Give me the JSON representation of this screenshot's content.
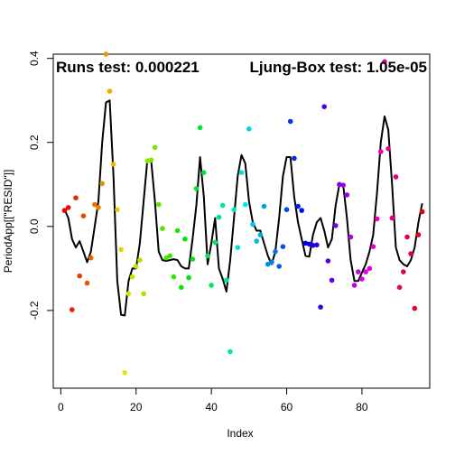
{
  "chart_data": {
    "type": "scatter",
    "title": "",
    "xlabel": "Index",
    "ylabel": "PeriodApp[[\"RESID\"]]",
    "xlim": [
      -2,
      98
    ],
    "ylim": [
      -0.385,
      0.41
    ],
    "x_ticks": [
      0,
      20,
      40,
      60,
      80
    ],
    "y_ticks": [
      -0.2,
      0.0,
      0.2,
      0.4
    ],
    "x_tick_labels": [
      "0",
      "20",
      "40",
      "60",
      "80"
    ],
    "y_tick_labels": [
      "-0.2",
      "0.0",
      "0.2",
      "0.4"
    ],
    "grid": false,
    "annotations": {
      "runs_test": "Runs test: 0.000221",
      "ljung_box": "Ljung-Box test: 1.05e-05"
    },
    "point_color": "rainbow hue by index (red → yellow → green → cyan → blue → magenta → red)",
    "line_color": "#000000",
    "points": {
      "x": [
        1,
        2,
        3,
        4,
        5,
        6,
        7,
        8,
        9,
        10,
        11,
        12,
        13,
        14,
        15,
        16,
        17,
        18,
        19,
        20,
        21,
        22,
        23,
        24,
        25,
        26,
        27,
        28,
        29,
        30,
        31,
        32,
        33,
        34,
        35,
        36,
        37,
        38,
        39,
        40,
        41,
        42,
        43,
        44,
        45,
        46,
        47,
        48,
        49,
        50,
        51,
        52,
        53,
        54,
        55,
        56,
        57,
        58,
        59,
        60,
        61,
        62,
        63,
        64,
        65,
        66,
        67,
        68,
        69,
        70,
        71,
        72,
        73,
        74,
        75,
        76,
        77,
        78,
        79,
        80,
        81,
        82,
        83,
        84,
        85,
        86,
        87,
        88,
        89,
        90,
        91,
        92,
        93,
        94,
        95,
        96
      ],
      "y": [
        0.038,
        0.045,
        -0.198,
        0.068,
        -0.118,
        0.025,
        -0.135,
        -0.075,
        0.052,
        0.045,
        0.102,
        0.41,
        0.322,
        0.148,
        0.04,
        -0.055,
        -0.348,
        -0.16,
        -0.12,
        -0.095,
        -0.08,
        -0.16,
        0.156,
        0.158,
        0.188,
        0.052,
        -0.005,
        -0.075,
        -0.07,
        -0.12,
        -0.01,
        -0.145,
        -0.03,
        -0.122,
        -0.078,
        0.09,
        0.235,
        0.128,
        -0.07,
        -0.14,
        -0.038,
        0.022,
        0.05,
        -0.128,
        -0.298,
        0.04,
        -0.05,
        0.128,
        0.052,
        0.232,
        0.005,
        -0.035,
        -0.02,
        0.048,
        -0.09,
        -0.085,
        -0.06,
        -0.095,
        -0.048,
        0.04,
        0.25,
        0.162,
        0.048,
        0.038,
        -0.04,
        -0.042,
        -0.045,
        -0.044,
        -0.192,
        0.285,
        -0.082,
        -0.128,
        0.002,
        0.1,
        0.098,
        0.075,
        -0.025,
        -0.14,
        -0.108,
        -0.125,
        -0.108,
        -0.1,
        -0.048,
        0.018,
        0.178,
        0.392,
        0.185,
        0.02,
        0.118,
        -0.145,
        -0.108,
        -0.025,
        -0.065,
        -0.195,
        -0.02,
        0.035
      ]
    },
    "smooth_line": {
      "x": [
        1,
        2,
        3,
        4,
        5,
        6,
        7,
        8,
        9,
        10,
        11,
        12,
        13,
        14,
        15,
        16,
        17,
        18,
        19,
        20,
        21,
        22,
        23,
        24,
        25,
        26,
        27,
        28,
        29,
        30,
        31,
        32,
        33,
        34,
        35,
        36,
        37,
        38,
        39,
        40,
        41,
        42,
        43,
        44,
        45,
        46,
        47,
        48,
        49,
        50,
        51,
        52,
        53,
        54,
        55,
        56,
        57,
        58,
        59,
        60,
        61,
        62,
        63,
        64,
        65,
        66,
        67,
        68,
        69,
        70,
        71,
        72,
        73,
        74,
        75,
        76,
        77,
        78,
        79,
        80,
        81,
        82,
        83,
        84,
        85,
        86,
        87,
        88,
        89,
        90,
        91,
        92,
        93,
        94,
        95,
        96
      ],
      "y": [
        0.04,
        0.02,
        -0.03,
        -0.05,
        -0.035,
        -0.06,
        -0.085,
        -0.06,
        0.0,
        0.06,
        0.2,
        0.295,
        0.3,
        0.12,
        -0.13,
        -0.21,
        -0.212,
        -0.13,
        -0.1,
        -0.1,
        -0.04,
        0.06,
        0.16,
        0.158,
        0.06,
        -0.06,
        -0.08,
        -0.082,
        -0.08,
        -0.078,
        -0.08,
        -0.095,
        -0.1,
        -0.1,
        -0.03,
        0.05,
        0.165,
        0.07,
        -0.09,
        -0.04,
        0.02,
        -0.1,
        -0.125,
        -0.155,
        -0.08,
        0.02,
        0.12,
        0.17,
        0.15,
        0.06,
        0.01,
        -0.01,
        -0.01,
        -0.04,
        -0.07,
        -0.09,
        -0.06,
        0.02,
        0.12,
        0.165,
        0.165,
        0.07,
        0.01,
        -0.03,
        -0.07,
        -0.072,
        -0.02,
        0.01,
        0.02,
        -0.01,
        -0.05,
        -0.03,
        0.05,
        0.1,
        0.1,
        0.02,
        -0.08,
        -0.13,
        -0.13,
        -0.11,
        -0.09,
        -0.06,
        -0.02,
        0.08,
        0.2,
        0.262,
        0.23,
        0.1,
        -0.05,
        -0.08,
        -0.09,
        -0.095,
        -0.08,
        -0.05,
        0.01,
        0.055
      ]
    }
  }
}
